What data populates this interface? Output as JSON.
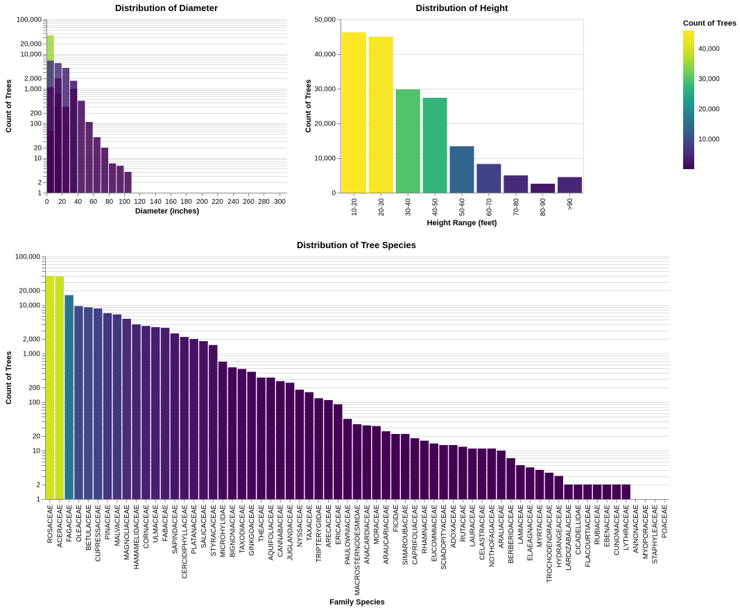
{
  "legend": {
    "title": "Count of Trees",
    "ticks": [
      "10,000",
      "20,000",
      "30,000",
      "40,000"
    ],
    "tick_values": [
      10000,
      20000,
      30000,
      40000
    ],
    "domain": [
      1,
      46000
    ]
  },
  "chart_data": [
    {
      "type": "bar",
      "id": "diameter",
      "title": "Distribution of Diameter",
      "xlabel": "Diameter (inches)",
      "ylabel": "Count of Trees",
      "yscale": "log",
      "ylim": [
        1,
        100000
      ],
      "y_tick_labels": [
        "1",
        "2",
        "10",
        "20",
        "100",
        "200",
        "1,000",
        "2,000",
        "10,000",
        "20,000",
        "100,000"
      ],
      "y_tick_values": [
        1,
        2,
        10,
        20,
        100,
        200,
        1000,
        2000,
        10000,
        20000,
        100000
      ],
      "xlim": [
        0,
        310
      ],
      "x_tick_labels": [
        "0",
        "20",
        "40",
        "60",
        "80",
        "100",
        "120",
        "140",
        "160",
        "180",
        "200",
        "220",
        "240",
        "260",
        "280",
        "300"
      ],
      "x_tick_values": [
        0,
        20,
        40,
        60,
        80,
        100,
        120,
        140,
        160,
        180,
        200,
        220,
        240,
        260,
        280,
        300
      ],
      "bin_width": 10,
      "bars": [
        {
          "x": 0,
          "value": 35000
        },
        {
          "x": 0,
          "value": 6500
        },
        {
          "x": 0,
          "value": 1100
        },
        {
          "x": 0,
          "value": 60
        },
        {
          "x": 10,
          "value": 5500
        },
        {
          "x": 10,
          "value": 2000
        },
        {
          "x": 10,
          "value": 700
        },
        {
          "x": 10,
          "value": 300
        },
        {
          "x": 20,
          "value": 4000
        },
        {
          "x": 20,
          "value": 300
        },
        {
          "x": 30,
          "value": 1700
        },
        {
          "x": 30,
          "value": 1000
        },
        {
          "x": 40,
          "value": 450
        },
        {
          "x": 50,
          "value": 110
        },
        {
          "x": 60,
          "value": 40
        },
        {
          "x": 70,
          "value": 20
        },
        {
          "x": 80,
          "value": 7
        },
        {
          "x": 90,
          "value": 6
        },
        {
          "x": 100,
          "value": 4
        }
      ]
    },
    {
      "type": "bar",
      "id": "height",
      "title": "Distribution of Height",
      "xlabel": "Height Range (feet)",
      "ylabel": "Count of Trees",
      "ylim": [
        0,
        50000
      ],
      "y_tick_labels": [
        "0",
        "10,000",
        "20,000",
        "30,000",
        "40,000",
        "50,000"
      ],
      "y_tick_values": [
        0,
        10000,
        20000,
        30000,
        40000,
        50000
      ],
      "categories": [
        "10-20",
        "20-30",
        "30-40",
        "40-50",
        "50-60",
        "60-70",
        "70-80",
        "80-90",
        ">90"
      ],
      "values": [
        46300,
        45000,
        29800,
        27400,
        13400,
        8300,
        5000,
        2600,
        4500
      ]
    },
    {
      "type": "bar",
      "id": "species",
      "title": "Distribution of Tree Species",
      "xlabel": "Family Species",
      "ylabel": "Count of Trees",
      "yscale": "log",
      "ylim": [
        1,
        100000
      ],
      "y_tick_labels": [
        "1",
        "2",
        "10",
        "20",
        "100",
        "200",
        "1,000",
        "2,000",
        "10,000",
        "20,000",
        "100,000"
      ],
      "y_tick_values": [
        1,
        2,
        10,
        20,
        100,
        200,
        1000,
        2000,
        10000,
        20000,
        100000
      ],
      "categories": [
        "ROSACEAE",
        "ACERACEAE",
        "FAGACEAE",
        "OLEACEAE",
        "BETULACEAE",
        "CUPRESSACEAE",
        "PINACEAE",
        "MALVACEAE",
        "MAGNOLIACEAE",
        "HAMAMELIDACEAE",
        "CORNACEAE",
        "ULMACEAE",
        "FABACEAE",
        "SAPINDACEAE",
        "CERCIDIPHYLLACEAE",
        "PLATANACEAE",
        "SALICACEAE",
        "STYRACACEAE",
        "MICROHYLIDAE",
        "BIGNONIACEAE",
        "TAXODIACEAE",
        "GINKGOACEAE",
        "THEACEAE",
        "AQUIFOLIACEAE",
        "CANNABACEAE",
        "JUGLANDACEAE",
        "NYSSACEAE",
        "TAXACEAE",
        "TRIPTERYGIIDAE",
        "ARECACEAE",
        "ERICACEAE",
        "PAULOWNIACEAE",
        "MACROSTERNODESMIDAE",
        "ANACARDIACEAE",
        "MORACEAE",
        "ARAUCARIACEAE",
        "FICIDAE",
        "SIMAROUBACEAE",
        "CAPRIFOLIACEAE",
        "RHAMNACEAE",
        "EUCOMMIACEAE",
        "SCIADOPITYACEAE",
        "ADOXACEAE",
        "RUTACEAE",
        "LAURACEAE",
        "CELASTRACEAE",
        "NOTHOFAGACEAE",
        "ARALIACEAE",
        "BERBERIDACEAE",
        "LAMIACEAE",
        "ELAEAGNACEAE",
        "MYRTACEAE",
        "TROCHODENDRACEAE",
        "HYDRANGEACEAE",
        "LARDIZABALACEAE",
        "CICADELLIDAE",
        "FLACOURTIACEAE",
        "RUBIACEAE",
        "EBENACEAE",
        "CUNONIACEAE",
        "LYTHRACEAE",
        "ANNONACEAE",
        "MYOPORACEAE",
        "STAPHYLEACEAE",
        "POACEAE"
      ],
      "values": [
        40000,
        39000,
        16000,
        9500,
        9000,
        8500,
        6800,
        6400,
        5200,
        4000,
        3700,
        3500,
        3400,
        2600,
        2200,
        2000,
        1800,
        1500,
        680,
        520,
        480,
        420,
        320,
        320,
        270,
        250,
        180,
        160,
        120,
        110,
        90,
        45,
        35,
        33,
        32,
        25,
        22,
        22,
        18,
        16,
        14,
        13,
        13,
        12,
        11,
        11,
        11,
        10,
        7,
        5,
        4.5,
        4,
        3.5,
        3,
        2,
        2,
        2,
        2,
        2,
        2,
        2,
        1,
        1,
        1,
        1
      ]
    }
  ]
}
